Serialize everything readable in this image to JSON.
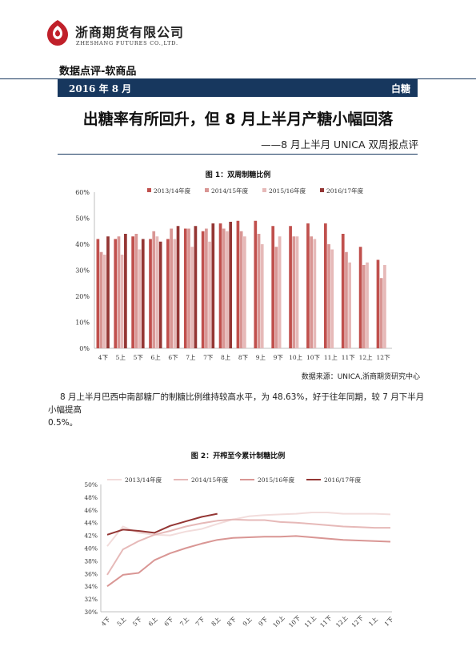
{
  "header": {
    "company_cn": "浙商期货有限公司",
    "company_en": "ZHESHANG FUTURES CO.,LTD.",
    "section_title": "数据点评-软商品",
    "date": "2016 年 8 月",
    "category": "白糖"
  },
  "headline": "出糖率有所回升，但 8 月上半月产糖小幅回落",
  "subheadline": "——8 月上半月 UNICA 双周报点评",
  "figure1": {
    "title": "图 1：双周制糖比例"
  },
  "source": "数据来源：UNICA,浙商期货研究中心",
  "paragraph": {
    "line1": "8 月上半月巴西中南部糖厂的制糖比例维持较高水平，为 48.63%，好于往年同期，较 7 月下半月小幅提高",
    "line2": "0.5%。"
  },
  "figure2": {
    "title": "图 2：开榨至今累计制糖比例"
  },
  "chart_data": [
    {
      "type": "bar",
      "categories": [
        "4下",
        "5上",
        "5下",
        "6上",
        "6下",
        "7上",
        "7下",
        "8上",
        "8下",
        "9上",
        "9下",
        "10上",
        "10下",
        "11上",
        "11下",
        "12上",
        "12下"
      ],
      "series": [
        {
          "name": "2013/14年度",
          "color": "#c0504d",
          "values": [
            42,
            42,
            43,
            42,
            42,
            46,
            45,
            48,
            49,
            49,
            47,
            47,
            48,
            48,
            44,
            39,
            34
          ]
        },
        {
          "name": "2014/15年度",
          "color": "#d99694",
          "values": [
            37,
            43,
            44,
            45,
            46,
            46,
            46,
            46,
            45,
            44,
            39,
            43,
            43,
            40,
            37,
            32,
            27
          ]
        },
        {
          "name": "2015/16年度",
          "color": "#e6b9b8",
          "values": [
            36,
            36,
            38,
            43,
            42,
            39,
            41,
            45,
            43,
            40,
            43,
            43,
            42,
            38,
            33,
            33,
            32
          ]
        },
        {
          "name": "2016/17年度",
          "color": "#943634",
          "values": [
            43,
            44,
            42,
            41,
            47,
            47,
            48,
            48.63,
            null,
            null,
            null,
            null,
            null,
            null,
            null,
            null,
            null
          ]
        }
      ],
      "yticks": [
        "0%",
        "10%",
        "20%",
        "30%",
        "40%",
        "50%",
        "60%"
      ],
      "ylim": [
        0,
        60
      ],
      "legend": "top"
    },
    {
      "type": "line",
      "x": [
        "4下",
        "5上",
        "5下",
        "6上",
        "6下",
        "7上",
        "7下",
        "8上",
        "8下",
        "9上",
        "9下",
        "10上",
        "10下",
        "11上",
        "11下",
        "12上",
        "12下",
        "1上",
        "1下"
      ],
      "series": [
        {
          "name": "2013/14年度",
          "color": "#f2dcdb",
          "values": [
            40.3,
            43.4,
            42.4,
            42.1,
            42.0,
            42.6,
            43.0,
            43.8,
            44.5,
            45.0,
            45.2,
            45.3,
            45.4,
            45.6,
            45.6,
            45.4,
            45.4,
            45.4,
            45.3
          ]
        },
        {
          "name": "2014/15年度",
          "color": "#e6b9b8",
          "values": [
            35.8,
            39.8,
            41.1,
            42.1,
            42.7,
            43.4,
            43.9,
            44.3,
            44.5,
            44.4,
            44.4,
            44.1,
            44.0,
            43.8,
            43.6,
            43.4,
            43.3,
            43.2,
            43.2
          ]
        },
        {
          "name": "2015/16年度",
          "color": "#d99694",
          "values": [
            34.0,
            35.8,
            36.1,
            38.1,
            39.2,
            40.0,
            40.7,
            41.3,
            41.6,
            41.7,
            41.8,
            41.8,
            41.9,
            41.7,
            41.5,
            41.3,
            41.2,
            41.1,
            41.0
          ]
        },
        {
          "name": "2016/17年度",
          "color": "#943634",
          "values": [
            42.1,
            42.9,
            42.7,
            42.4,
            43.5,
            44.2,
            44.9,
            45.4,
            null,
            null,
            null,
            null,
            null,
            null,
            null,
            null,
            null,
            null,
            null
          ]
        }
      ],
      "yticks": [
        "30%",
        "32%",
        "34%",
        "36%",
        "38%",
        "40%",
        "42%",
        "44%",
        "46%",
        "48%",
        "50%"
      ],
      "ylim": [
        30,
        50
      ],
      "legend": "top"
    }
  ]
}
